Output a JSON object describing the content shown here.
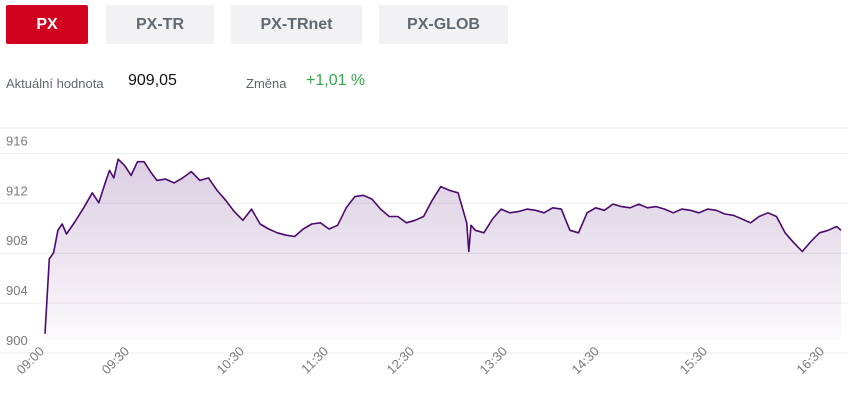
{
  "tabs": [
    {
      "label": "PX",
      "active": true
    },
    {
      "label": "PX-TR",
      "active": false
    },
    {
      "label": "PX-TRnet",
      "active": false
    },
    {
      "label": "PX-GLOB",
      "active": false
    }
  ],
  "stats": {
    "current_label": "Aktuální hodnota",
    "current_value": "909,05",
    "change_label": "Změna",
    "change_value": "+1,01 %"
  },
  "colors": {
    "active_tab": "#d1001f",
    "inactive_tab": "#f2f2f4",
    "line": "#4b0a6e",
    "change_positive": "#34a84a"
  },
  "chart_data": {
    "type": "area",
    "x_ticks": [
      "09:00",
      "09:30",
      "10:30",
      "11:30",
      "12:30",
      "13:30",
      "14:30",
      "15:30",
      "16:30"
    ],
    "y_ticks": [
      "900",
      "904",
      "908",
      "912",
      "916"
    ],
    "ylim": [
      900,
      917
    ],
    "grid": true,
    "series": [
      {
        "values": [
          [
            0,
            900.5
          ],
          [
            2,
            906.5
          ],
          [
            4,
            907
          ],
          [
            6,
            908.8
          ],
          [
            8,
            909.3
          ],
          [
            10,
            908.5
          ],
          [
            14,
            909.5
          ],
          [
            18,
            910.6
          ],
          [
            22,
            911.8
          ],
          [
            25,
            911
          ],
          [
            28,
            912.6
          ],
          [
            30,
            913.6
          ],
          [
            32,
            913
          ],
          [
            34,
            914.5
          ],
          [
            37,
            914
          ],
          [
            40,
            913.2
          ],
          [
            43,
            914.3
          ],
          [
            46,
            914.3
          ],
          [
            49,
            913.5
          ],
          [
            52,
            912.8
          ],
          [
            56,
            912.9
          ],
          [
            60,
            912.6
          ],
          [
            64,
            913
          ],
          [
            68,
            913.5
          ],
          [
            72,
            912.8
          ],
          [
            76,
            913
          ],
          [
            80,
            912
          ],
          [
            84,
            911.2
          ],
          [
            88,
            910.3
          ],
          [
            92,
            909.6
          ],
          [
            96,
            910.5
          ],
          [
            100,
            909.3
          ],
          [
            104,
            908.9
          ],
          [
            108,
            908.6
          ],
          [
            112,
            908.4
          ],
          [
            116,
            908.3
          ],
          [
            120,
            908.9
          ],
          [
            124,
            909.3
          ],
          [
            128,
            909.4
          ],
          [
            132,
            908.9
          ],
          [
            136,
            909.2
          ],
          [
            140,
            910.6
          ],
          [
            144,
            911.5
          ],
          [
            148,
            911.6
          ],
          [
            152,
            911.3
          ],
          [
            156,
            910.5
          ],
          [
            160,
            909.9
          ],
          [
            164,
            909.9
          ],
          [
            168,
            909.4
          ],
          [
            172,
            909.6
          ],
          [
            176,
            909.9
          ],
          [
            180,
            911.2
          ],
          [
            184,
            912.3
          ],
          [
            188,
            912
          ],
          [
            192,
            911.8
          ],
          [
            196,
            909.4
          ],
          [
            197,
            907.1
          ],
          [
            198,
            909.2
          ],
          [
            200,
            908.8
          ],
          [
            204,
            908.6
          ],
          [
            208,
            909.7
          ],
          [
            212,
            910.5
          ],
          [
            216,
            910.2
          ],
          [
            220,
            910.3
          ],
          [
            224,
            910.5
          ],
          [
            228,
            910.4
          ],
          [
            232,
            910.2
          ],
          [
            236,
            910.6
          ],
          [
            240,
            910.5
          ],
          [
            244,
            908.8
          ],
          [
            248,
            908.6
          ],
          [
            252,
            910.2
          ],
          [
            256,
            910.6
          ],
          [
            260,
            910.4
          ],
          [
            264,
            910.9
          ],
          [
            268,
            910.7
          ],
          [
            272,
            910.6
          ],
          [
            276,
            910.9
          ],
          [
            280,
            910.6
          ],
          [
            284,
            910.7
          ],
          [
            288,
            910.5
          ],
          [
            292,
            910.2
          ],
          [
            296,
            910.5
          ],
          [
            300,
            910.4
          ],
          [
            304,
            910.2
          ],
          [
            308,
            910.5
          ],
          [
            312,
            910.4
          ],
          [
            316,
            910.1
          ],
          [
            320,
            910
          ],
          [
            324,
            909.7
          ],
          [
            328,
            909.4
          ],
          [
            332,
            909.9
          ],
          [
            336,
            910.2
          ],
          [
            340,
            909.9
          ],
          [
            344,
            908.6
          ],
          [
            348,
            907.8
          ],
          [
            352,
            907.1
          ],
          [
            356,
            907.9
          ],
          [
            360,
            908.6
          ],
          [
            364,
            908.8
          ],
          [
            368,
            909.1
          ],
          [
            370,
            908.8
          ]
        ]
      }
    ]
  }
}
